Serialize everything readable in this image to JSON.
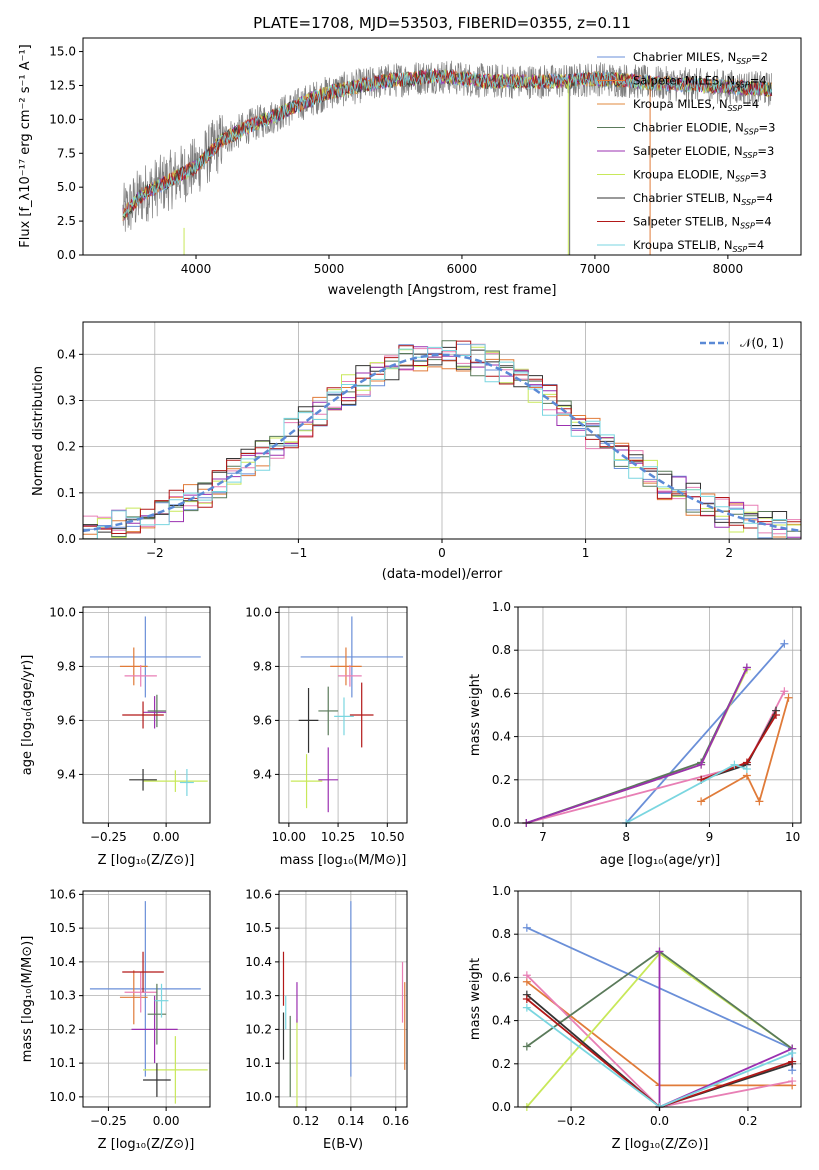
{
  "chart_data": [
    {
      "id": "spectrum",
      "type": "line",
      "title": "PLATE=1708, MJD=53503, FIBERID=0355, z=0.11",
      "xlabel": "wavelength [Angstrom, rest frame]",
      "ylabel": "Flux [f_λ10⁻¹⁷ erg cm⁻² s⁻¹ A⁻¹]",
      "xlim": [
        3150,
        8550
      ],
      "ylim": [
        0,
        16
      ],
      "xticks": [
        "4000",
        "5000",
        "6000",
        "7000",
        "8000"
      ],
      "yticks": [
        "0.0",
        "2.5",
        "5.0",
        "7.5",
        "10.0",
        "12.5",
        "15.0"
      ],
      "legend_position": "right",
      "envelope": {
        "x": [
          3450,
          3600,
          3800,
          4000,
          4200,
          4400,
          4600,
          4800,
          5000,
          5200,
          5400,
          5600,
          5800,
          6000,
          6200,
          6400,
          6600,
          6800,
          7000,
          7200,
          7400,
          7600,
          7800,
          8000,
          8200,
          8330
        ],
        "y": [
          3.0,
          4.5,
          5.5,
          6.5,
          8.5,
          9.5,
          10.3,
          11.2,
          12.0,
          12.4,
          12.8,
          13.0,
          13.2,
          13.0,
          12.8,
          12.8,
          12.8,
          12.8,
          13.0,
          12.9,
          12.7,
          12.6,
          12.5,
          12.4,
          12.3,
          12.2
        ]
      },
      "series": [
        {
          "name": "Chabrier MILES, N_SSP=2",
          "color": "#6a8fd8"
        },
        {
          "name": "Salpeter MILES, N_SSP=4",
          "color": "#e07b39"
        },
        {
          "name": "Kroupa MILES, N_SSP=4",
          "color": "#e08a3c"
        },
        {
          "name": "Chabrier ELODIE, N_SSP=3",
          "color": "#5a7a5a"
        },
        {
          "name": "Salpeter ELODIE, N_SSP=3",
          "color": "#9b30b0"
        },
        {
          "name": "Kroupa ELODIE, N_SSP=3",
          "color": "#c8e85a"
        },
        {
          "name": "Chabrier STELIB, N_SSP=4",
          "color": "#333333"
        },
        {
          "name": "Salpeter STELIB, N_SSP=4",
          "color": "#b21818"
        },
        {
          "name": "Kroupa STELIB, N_SSP=4",
          "color": "#7ad6e0"
        }
      ]
    },
    {
      "id": "residuals",
      "type": "histogram",
      "xlabel": "(data-model)/error",
      "ylabel": "Normed distribution",
      "xlim": [
        -2.5,
        2.5
      ],
      "ylim": [
        0,
        0.47
      ],
      "xticks": [
        "−2",
        "−1",
        "0",
        "1",
        "2"
      ],
      "yticks": [
        "0.0",
        "0.1",
        "0.2",
        "0.3",
        "0.4"
      ],
      "legend": "𝒩(0, 1)",
      "normal_color": "#5b8ad6",
      "bin_width": 0.1
    },
    {
      "id": "age_vs_z",
      "type": "errorbar",
      "xlabel": "Z [log₁₀(Z/Z⊙)]",
      "ylabel": "age  [log₁₀(age/yr)]",
      "xlim": [
        -0.36,
        0.19
      ],
      "ylim": [
        9.22,
        10.02
      ],
      "xticks": [
        "−0.25",
        "0.00"
      ],
      "xtick_values": [
        -0.25,
        0.0
      ],
      "yticks": [
        "9.4",
        "9.6",
        "9.8",
        "10.0"
      ],
      "ytick_values": [
        9.4,
        9.6,
        9.8,
        10.0
      ],
      "points": [
        {
          "color": "#6a8fd8",
          "x": -0.09,
          "y": 9.835,
          "xerr": 0.24,
          "yerr": 0.15
        },
        {
          "color": "#e07b39",
          "x": -0.14,
          "y": 9.8,
          "xerr": 0.06,
          "yerr": 0.07
        },
        {
          "color": "#e87fb5",
          "x": -0.11,
          "y": 9.765,
          "xerr": 0.07,
          "yerr": 0.04
        },
        {
          "color": "#c8e85a",
          "x": 0.04,
          "y": 9.375,
          "xerr": 0.14,
          "yerr": 0.04
        },
        {
          "color": "#9b30b0",
          "x": -0.05,
          "y": 9.63,
          "xerr": 0.05,
          "yerr": 0.06
        },
        {
          "color": "#5a7a5a",
          "x": -0.04,
          "y": 9.635,
          "xerr": 0.04,
          "yerr": 0.06
        },
        {
          "color": "#b21818",
          "x": -0.1,
          "y": 9.62,
          "xerr": 0.09,
          "yerr": 0.05
        },
        {
          "color": "#333333",
          "x": -0.1,
          "y": 9.38,
          "xerr": 0.06,
          "yerr": 0.04
        },
        {
          "color": "#7ad6e0",
          "x": 0.09,
          "y": 9.37,
          "xerr": 0.03,
          "yerr": 0.05
        }
      ]
    },
    {
      "id": "age_vs_mass",
      "type": "errorbar",
      "xlabel": "mass [log₁₀(M/M⊙)]",
      "xlim": [
        9.95,
        10.6
      ],
      "ylim": [
        9.22,
        10.02
      ],
      "xticks": [
        "10.00",
        "10.25",
        "10.50"
      ],
      "xtick_values": [
        10.0,
        10.25,
        10.5
      ],
      "yticks": [
        "9.4",
        "9.6",
        "9.8",
        "10.0"
      ],
      "ytick_values": [
        9.4,
        9.6,
        9.8,
        10.0
      ],
      "points": [
        {
          "color": "#6a8fd8",
          "x": 10.32,
          "y": 9.835,
          "xerr": 0.26,
          "yerr": 0.15
        },
        {
          "color": "#e07b39",
          "x": 10.29,
          "y": 9.8,
          "xerr": 0.08,
          "yerr": 0.07
        },
        {
          "color": "#e87fb5",
          "x": 10.31,
          "y": 9.765,
          "xerr": 0.06,
          "yerr": 0.04
        },
        {
          "color": "#c8e85a",
          "x": 10.09,
          "y": 9.375,
          "xerr": 0.08,
          "yerr": 0.1
        },
        {
          "color": "#9b30b0",
          "x": 10.2,
          "y": 9.38,
          "xerr": 0.05,
          "yerr": 0.12
        },
        {
          "color": "#5a7a5a",
          "x": 10.2,
          "y": 9.635,
          "xerr": 0.05,
          "yerr": 0.09
        },
        {
          "color": "#b21818",
          "x": 10.37,
          "y": 9.62,
          "xerr": 0.06,
          "yerr": 0.12
        },
        {
          "color": "#333333",
          "x": 10.1,
          "y": 9.6,
          "xerr": 0.05,
          "yerr": 0.12
        },
        {
          "color": "#7ad6e0",
          "x": 10.28,
          "y": 9.615,
          "xerr": 0.05,
          "yerr": 0.07
        }
      ]
    },
    {
      "id": "mass_weight_vs_age",
      "type": "line",
      "xlabel": "age  [log₁₀(age/yr)]",
      "ylabel": "mass weight",
      "xlim": [
        6.7,
        10.1
      ],
      "ylim": [
        0,
        1
      ],
      "xticks": [
        "7",
        "8",
        "9",
        "10"
      ],
      "xtick_values": [
        7,
        8,
        9,
        10
      ],
      "yticks": [
        "0.0",
        "0.2",
        "0.4",
        "0.6",
        "0.8",
        "1.0"
      ],
      "ytick_values": [
        0,
        0.2,
        0.4,
        0.6,
        0.8,
        1.0
      ],
      "series": [
        {
          "color": "#6a8fd8",
          "x": [
            8.0,
            9.9
          ],
          "y": [
            0.0,
            0.83
          ]
        },
        {
          "color": "#e07b39",
          "x": [
            8.9,
            9.45,
            9.6,
            9.95
          ],
          "y": [
            0.1,
            0.22,
            0.1,
            0.58
          ]
        },
        {
          "color": "#e87fb5",
          "x": [
            6.8,
            9.45,
            9.9
          ],
          "y": [
            0.0,
            0.27,
            0.61
          ]
        },
        {
          "color": "#c8e85a",
          "x": [
            6.8,
            8.9,
            9.45
          ],
          "y": [
            0.0,
            0.27,
            0.71
          ]
        },
        {
          "color": "#5a7a5a",
          "x": [
            6.8,
            8.9,
            9.45
          ],
          "y": [
            0.0,
            0.28,
            0.72
          ]
        },
        {
          "color": "#9b30b0",
          "x": [
            6.8,
            8.9,
            9.45
          ],
          "y": [
            0.0,
            0.27,
            0.72
          ]
        },
        {
          "color": "#333333",
          "x": [
            8.9,
            9.45,
            9.8
          ],
          "y": [
            0.2,
            0.27,
            0.52
          ]
        },
        {
          "color": "#b21818",
          "x": [
            8.9,
            9.45,
            9.8
          ],
          "y": [
            0.2,
            0.28,
            0.5
          ]
        },
        {
          "color": "#7ad6e0",
          "x": [
            8.0,
            9.3,
            9.45
          ],
          "y": [
            0.0,
            0.27,
            0.25
          ]
        }
      ]
    },
    {
      "id": "mass_vs_z",
      "type": "errorbar",
      "xlabel": "Z [log₁₀(Z/Z⊙)]",
      "ylabel": "mass [log₁₀(M/M⊙)]",
      "xlim": [
        -0.36,
        0.19
      ],
      "ylim": [
        9.97,
        10.61
      ],
      "xticks": [
        "−0.25",
        "0.00"
      ],
      "xtick_values": [
        -0.25,
        0.0
      ],
      "yticks": [
        "10.0",
        "10.1",
        "10.2",
        "10.3",
        "10.4",
        "10.5",
        "10.6"
      ],
      "ytick_values": [
        10.0,
        10.1,
        10.2,
        10.3,
        10.4,
        10.5,
        10.6
      ],
      "points": [
        {
          "color": "#6a8fd8",
          "x": -0.09,
          "y": 10.32,
          "xerr": 0.24,
          "yerr": 0.26
        },
        {
          "color": "#e07b39",
          "x": -0.14,
          "y": 10.295,
          "xerr": 0.06,
          "yerr": 0.08
        },
        {
          "color": "#e87fb5",
          "x": -0.11,
          "y": 10.31,
          "xerr": 0.07,
          "yerr": 0.06
        },
        {
          "color": "#c8e85a",
          "x": 0.04,
          "y": 10.08,
          "xerr": 0.14,
          "yerr": 0.1
        },
        {
          "color": "#9b30b0",
          "x": -0.05,
          "y": 10.2,
          "xerr": 0.1,
          "yerr": 0.1
        },
        {
          "color": "#5a7a5a",
          "x": -0.04,
          "y": 10.245,
          "xerr": 0.04,
          "yerr": 0.09
        },
        {
          "color": "#b21818",
          "x": -0.1,
          "y": 10.37,
          "xerr": 0.09,
          "yerr": 0.06
        },
        {
          "color": "#333333",
          "x": -0.04,
          "y": 10.05,
          "xerr": 0.06,
          "yerr": 0.05
        },
        {
          "color": "#7ad6e0",
          "x": -0.02,
          "y": 10.285,
          "xerr": 0.03,
          "yerr": 0.05
        }
      ]
    },
    {
      "id": "mass_vs_ebv",
      "type": "errorbar",
      "xlabel": "E(B-V)",
      "xlim": [
        0.108,
        0.165
      ],
      "ylim": [
        9.97,
        10.61
      ],
      "xticks": [
        "0.12",
        "0.14",
        "0.16"
      ],
      "xtick_values": [
        0.12,
        0.14,
        0.16
      ],
      "yticks": [
        "10.0",
        "10.1",
        "10.2",
        "10.3",
        "10.4",
        "10.5",
        "10.6"
      ],
      "ytick_values": [
        10.0,
        10.1,
        10.2,
        10.3,
        10.4,
        10.5,
        10.6
      ],
      "points": [
        {
          "color": "#6a8fd8",
          "x": 0.14,
          "y": 10.32,
          "xerr": 0,
          "yerr": 0.26
        },
        {
          "color": "#e07b39",
          "x": 0.164,
          "y": 10.21,
          "xerr": 0,
          "yerr": 0.13
        },
        {
          "color": "#e87fb5",
          "x": 0.163,
          "y": 10.31,
          "xerr": 0,
          "yerr": 0.09
        },
        {
          "color": "#c8e85a",
          "x": 0.116,
          "y": 10.1,
          "xerr": 0,
          "yerr": 0.13
        },
        {
          "color": "#9b30b0",
          "x": 0.116,
          "y": 10.28,
          "xerr": 0,
          "yerr": 0.06
        },
        {
          "color": "#5a7a5a",
          "x": 0.113,
          "y": 10.12,
          "xerr": 0,
          "yerr": 0.12
        },
        {
          "color": "#b21818",
          "x": 0.11,
          "y": 10.35,
          "xerr": 0,
          "yerr": 0.08
        },
        {
          "color": "#333333",
          "x": 0.11,
          "y": 10.18,
          "xerr": 0,
          "yerr": 0.07
        },
        {
          "color": "#7ad6e0",
          "x": 0.111,
          "y": 10.25,
          "xerr": 0,
          "yerr": 0.05
        }
      ]
    },
    {
      "id": "mass_weight_vs_z",
      "type": "line",
      "xlabel": "Z [log₁₀(Z/Z⊙)]",
      "ylabel": "mass weight",
      "xlim": [
        -0.32,
        0.32
      ],
      "ylim": [
        0,
        1
      ],
      "xticks": [
        "−0.2",
        "0.0",
        "0.2"
      ],
      "xtick_values": [
        -0.2,
        0.0,
        0.2
      ],
      "yticks": [
        "0.0",
        "0.2",
        "0.4",
        "0.6",
        "0.8",
        "1.0"
      ],
      "ytick_values": [
        0,
        0.2,
        0.4,
        0.6,
        0.8,
        1.0
      ],
      "series": [
        {
          "color": "#6a8fd8",
          "x": [
            -0.3,
            0.3,
            0.3
          ],
          "y": [
            0.83,
            0.27,
            0.17
          ]
        },
        {
          "color": "#e07b39",
          "x": [
            -0.3,
            0.0,
            0.3
          ],
          "y": [
            0.58,
            0.1,
            0.1
          ]
        },
        {
          "color": "#e87fb5",
          "x": [
            -0.3,
            0.0,
            0.3
          ],
          "y": [
            0.61,
            0.0,
            0.12
          ]
        },
        {
          "color": "#c8e85a",
          "x": [
            -0.3,
            0.0,
            0.3
          ],
          "y": [
            0.0,
            0.71,
            0.27
          ]
        },
        {
          "color": "#5a7a5a",
          "x": [
            -0.3,
            0.0,
            0.3
          ],
          "y": [
            0.28,
            0.72,
            0.27
          ]
        },
        {
          "color": "#9b30b0",
          "x": [
            0.0,
            0.0,
            0.3
          ],
          "y": [
            0.72,
            0.0,
            0.27
          ]
        },
        {
          "color": "#333333",
          "x": [
            -0.3,
            0.0,
            0.3
          ],
          "y": [
            0.52,
            0.0,
            0.2
          ]
        },
        {
          "color": "#b21818",
          "x": [
            -0.3,
            0.0,
            0.3
          ],
          "y": [
            0.5,
            0.0,
            0.21
          ]
        },
        {
          "color": "#7ad6e0",
          "x": [
            -0.3,
            0.0,
            0.3
          ],
          "y": [
            0.46,
            0.0,
            0.25
          ]
        }
      ]
    }
  ]
}
